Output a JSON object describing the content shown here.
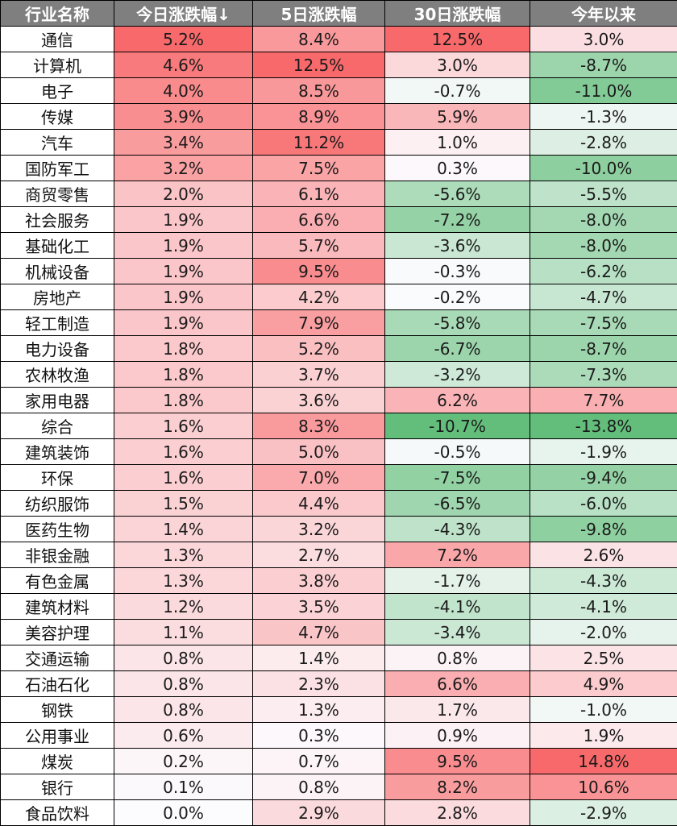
{
  "chart_data": {
    "type": "table",
    "columns": [
      "行业名称",
      "今日涨跌幅↓",
      "5日涨跌幅",
      "30日涨跌幅",
      "今年以来"
    ],
    "rows": [
      {
        "name": "通信",
        "values": [
          5.2,
          8.4,
          12.5,
          3.0
        ]
      },
      {
        "name": "计算机",
        "values": [
          4.6,
          12.5,
          3.0,
          -8.7
        ]
      },
      {
        "name": "电子",
        "values": [
          4.0,
          8.5,
          -0.7,
          -11.0
        ]
      },
      {
        "name": "传媒",
        "values": [
          3.9,
          8.9,
          5.9,
          -1.3
        ]
      },
      {
        "name": "汽车",
        "values": [
          3.4,
          11.2,
          1.0,
          -2.8
        ]
      },
      {
        "name": "国防军工",
        "values": [
          3.2,
          7.5,
          0.3,
          -10.0
        ]
      },
      {
        "name": "商贸零售",
        "values": [
          2.0,
          6.1,
          -5.6,
          -5.5
        ]
      },
      {
        "name": "社会服务",
        "values": [
          1.9,
          6.6,
          -7.2,
          -8.0
        ]
      },
      {
        "name": "基础化工",
        "values": [
          1.9,
          5.7,
          -3.6,
          -8.0
        ]
      },
      {
        "name": "机械设备",
        "values": [
          1.9,
          9.5,
          -0.3,
          -6.2
        ]
      },
      {
        "name": "房地产",
        "values": [
          1.9,
          4.2,
          -0.2,
          -4.7
        ]
      },
      {
        "name": "轻工制造",
        "values": [
          1.9,
          7.9,
          -5.8,
          -7.5
        ]
      },
      {
        "name": "电力设备",
        "values": [
          1.8,
          5.2,
          -6.7,
          -8.7
        ]
      },
      {
        "name": "农林牧渔",
        "values": [
          1.8,
          3.7,
          -3.2,
          -7.3
        ]
      },
      {
        "name": "家用电器",
        "values": [
          1.8,
          3.6,
          6.2,
          7.7
        ]
      },
      {
        "name": "综合",
        "values": [
          1.6,
          8.3,
          -10.7,
          -13.8
        ]
      },
      {
        "name": "建筑装饰",
        "values": [
          1.6,
          5.0,
          -0.5,
          -1.9
        ]
      },
      {
        "name": "环保",
        "values": [
          1.6,
          7.0,
          -7.5,
          -9.4
        ]
      },
      {
        "name": "纺织服饰",
        "values": [
          1.5,
          4.4,
          -6.5,
          -6.0
        ]
      },
      {
        "name": "医药生物",
        "values": [
          1.4,
          3.2,
          -4.3,
          -9.8
        ]
      },
      {
        "name": "非银金融",
        "values": [
          1.3,
          2.7,
          7.2,
          2.6
        ]
      },
      {
        "name": "有色金属",
        "values": [
          1.3,
          3.8,
          -1.7,
          -4.3
        ]
      },
      {
        "name": "建筑材料",
        "values": [
          1.2,
          3.5,
          -4.1,
          -4.1
        ]
      },
      {
        "name": "美容护理",
        "values": [
          1.1,
          4.7,
          -3.4,
          -2.0
        ]
      },
      {
        "name": "交通运输",
        "values": [
          0.8,
          1.4,
          0.8,
          2.5
        ]
      },
      {
        "name": "石油石化",
        "values": [
          0.8,
          2.3,
          6.6,
          4.9
        ]
      },
      {
        "name": "钢铁",
        "values": [
          0.8,
          1.3,
          1.7,
          -1.0
        ]
      },
      {
        "name": "公用事业",
        "values": [
          0.6,
          0.3,
          0.9,
          1.9
        ]
      },
      {
        "name": "煤炭",
        "values": [
          0.2,
          0.7,
          9.5,
          14.8
        ]
      },
      {
        "name": "银行",
        "values": [
          0.1,
          0.8,
          8.2,
          10.6
        ]
      },
      {
        "name": "食品饮料",
        "values": [
          0.0,
          2.9,
          2.8,
          -2.9
        ]
      }
    ],
    "unit": "%",
    "colors": {
      "header_bg": "#7f7f7f",
      "header_text": "#ffffff",
      "positive_max": "#f8696b",
      "neutral": "#fcfcff",
      "negative_max": "#63be7b"
    }
  }
}
